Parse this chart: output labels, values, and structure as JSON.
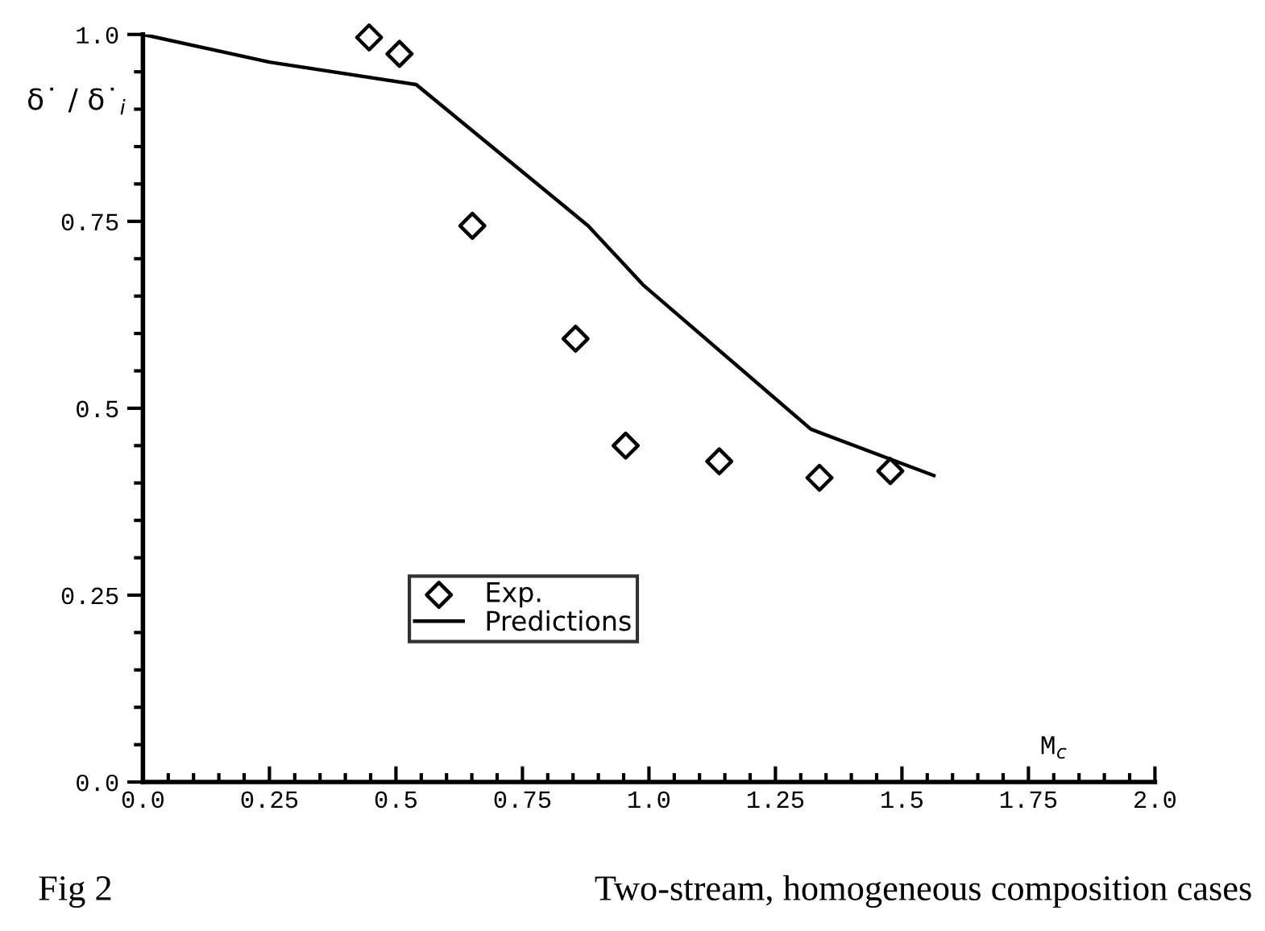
{
  "chart_data": {
    "type": "line",
    "xlabel": "M$_{c}$",
    "ylabel": "δ˙ / δ˙$_{i}$",
    "annotations": [
      "Fig 2",
      "Two-stream, homogeneous composition cases"
    ],
    "series": [
      {
        "name": "Exp.",
        "type": "scatter",
        "color": "#000000",
        "marker": "diamond",
        "x": [
          0.447,
          0.507,
          0.651,
          0.855,
          0.954,
          1.139,
          1.337,
          1.477
        ],
        "values": [
          0.996,
          0.974,
          0.744,
          0.593,
          0.45,
          0.429,
          0.407,
          0.416
        ]
      },
      {
        "name": "Predictions",
        "color": "#000000",
        "line_style": "solid",
        "x": [
          0.0,
          0.25,
          0.54,
          0.88,
          0.99,
          1.32,
          1.563
        ],
        "values": [
          1.0,
          0.963,
          0.933,
          0.744,
          0.664,
          0.472,
          0.41
        ]
      }
    ],
    "xlim": [
      0,
      2.0
    ],
    "ylim": [
      0,
      1.0
    ],
    "xticks": [
      {
        "value": 0,
        "label": "0.0"
      },
      0.25,
      0.5,
      0.75,
      {
        "value": 1,
        "label": "1.0"
      },
      1.25,
      1.5,
      1.75,
      {
        "value": 2,
        "label": "2.0"
      }
    ],
    "yticks": [
      {
        "value": 0,
        "label": "0.0"
      },
      0.25,
      0.5,
      0.75,
      {
        "value": 1,
        "label": "1.0"
      }
    ],
    "grid": false,
    "legend": "lower left"
  }
}
